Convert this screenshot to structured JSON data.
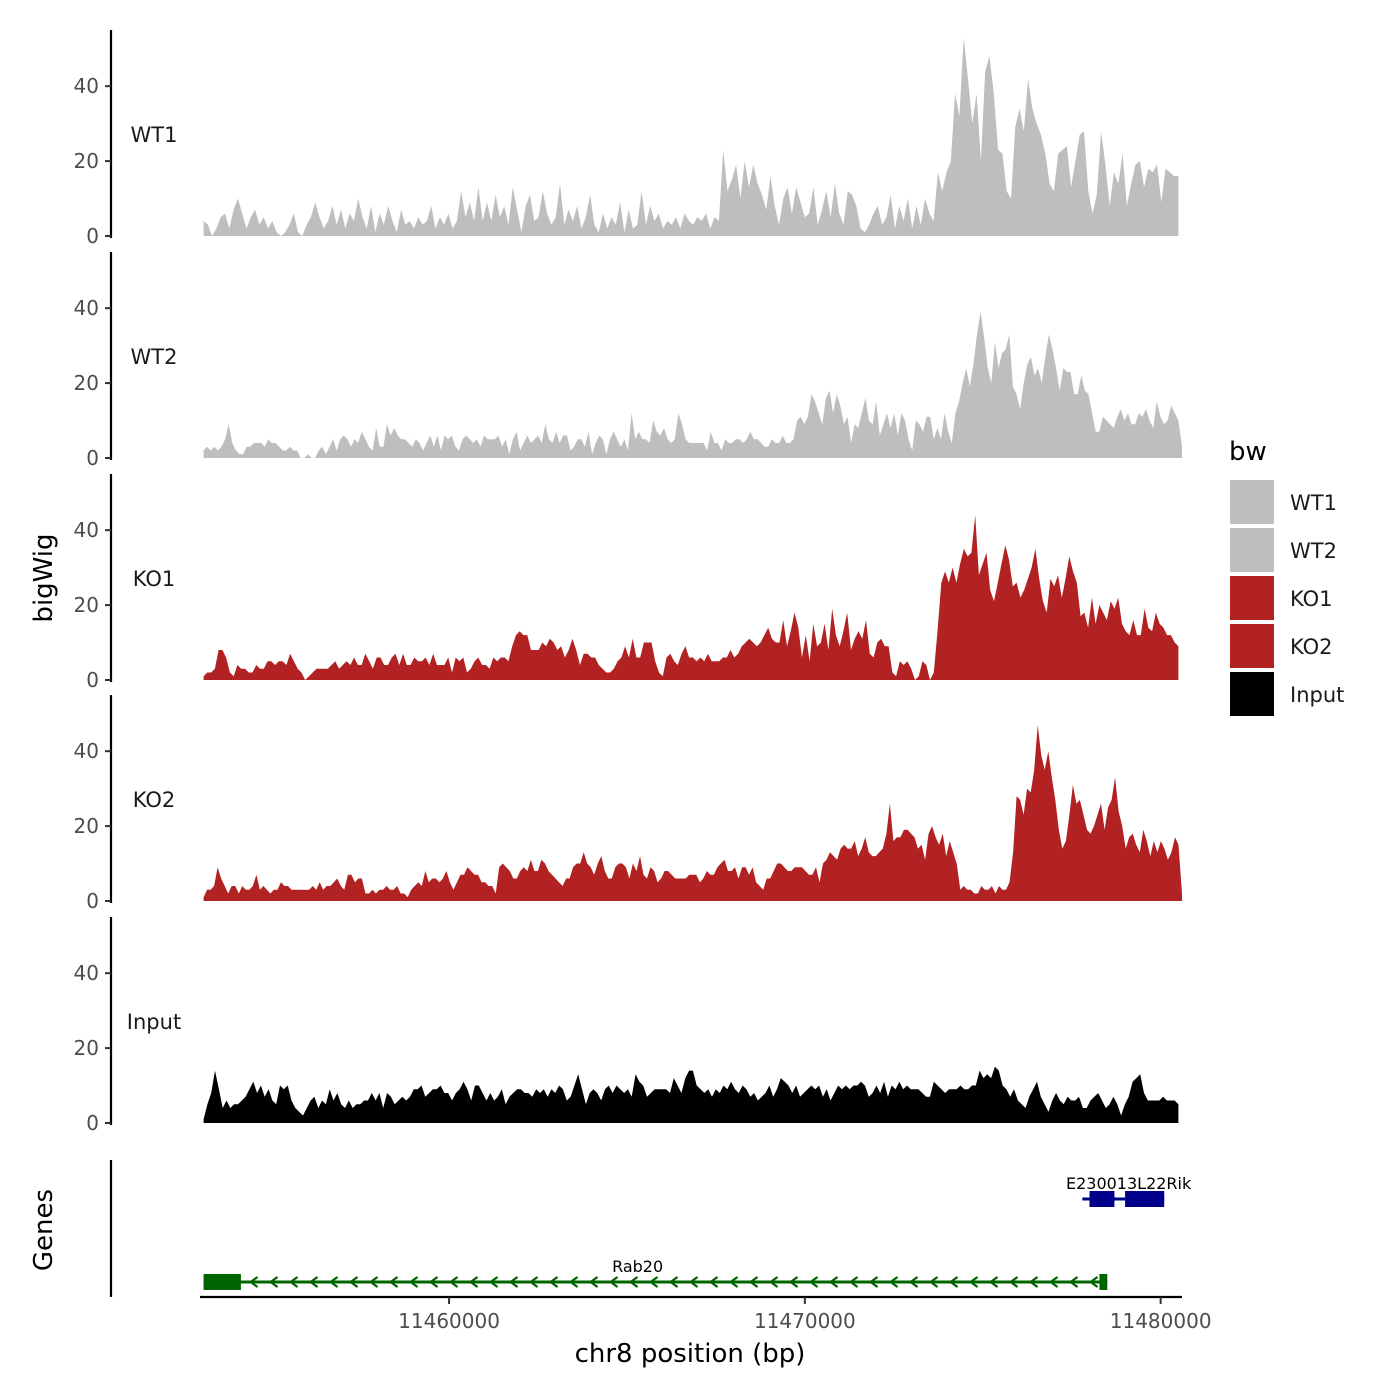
{
  "chart_data": {
    "type": "area",
    "ylabel": "bigWig",
    "xlabel": "chr8 position (bp)",
    "genes_label": "Genes",
    "xlim": [
      11453000,
      11480600
    ],
    "ylim": [
      0,
      55
    ],
    "yticks": [
      0,
      20,
      40
    ],
    "xticks": [
      11460000,
      11470000,
      11480000
    ],
    "xtick_labels": [
      "11460000",
      "11470000",
      "11480000"
    ],
    "legend": {
      "title": "bw",
      "position": "right",
      "entries": [
        {
          "label": "WT1",
          "color": "#bebebe"
        },
        {
          "label": "WT2",
          "color": "#bebebe"
        },
        {
          "label": "KO1",
          "color": "#b22222"
        },
        {
          "label": "KO2",
          "color": "#b22222"
        },
        {
          "label": "Input",
          "color": "#000000"
        }
      ]
    },
    "tracks": [
      {
        "name": "WT1",
        "color": "#bebebe",
        "x_start": 11453100,
        "x_end": 11480500,
        "values": [
          4,
          3,
          0,
          2,
          5,
          6,
          2,
          7,
          10,
          6,
          2,
          5,
          7,
          3,
          5,
          2,
          4,
          1,
          0,
          1,
          3,
          6,
          1,
          0,
          3,
          5,
          9,
          5,
          2,
          4,
          8,
          3,
          7,
          2,
          6,
          4,
          10,
          5,
          2,
          8,
          1,
          6,
          3,
          8,
          4,
          1,
          7,
          3,
          4,
          2,
          5,
          3,
          4,
          8,
          2,
          5,
          3,
          6,
          2,
          4,
          12,
          5,
          9,
          4,
          13,
          4,
          9,
          4,
          11,
          5,
          8,
          3,
          13,
          7,
          1,
          8,
          11,
          4,
          5,
          12,
          6,
          3,
          5,
          14,
          3,
          7,
          4,
          8,
          2,
          5,
          11,
          3,
          1,
          6,
          2,
          5,
          3,
          9,
          1,
          7,
          2,
          3,
          12,
          3,
          8,
          4,
          6,
          2,
          4,
          3,
          5,
          2,
          6,
          4,
          3,
          5,
          4,
          6,
          2,
          5,
          4,
          23,
          12,
          15,
          19,
          10,
          20,
          13,
          19,
          14,
          11,
          7,
          16,
          8,
          3,
          10,
          13,
          6,
          13,
          9,
          5,
          6,
          13,
          3,
          7,
          12,
          5,
          14,
          6,
          3,
          12,
          11,
          8,
          2,
          1,
          3,
          6,
          8,
          3,
          5,
          11,
          2,
          8,
          4,
          10,
          2,
          8,
          3,
          10,
          6,
          4,
          17,
          12,
          17,
          20,
          38,
          32,
          53,
          42,
          30,
          38,
          20,
          44,
          48,
          38,
          23,
          22,
          12,
          10,
          29,
          34,
          28,
          42,
          34,
          30,
          27,
          22,
          14,
          12,
          22,
          23,
          24,
          13,
          20,
          27,
          28,
          12,
          6,
          11,
          28,
          19,
          8,
          17,
          14,
          22,
          8,
          14,
          19,
          20,
          13,
          18,
          17,
          19,
          9,
          18,
          17,
          16,
          16
        ]
      },
      {
        "name": "WT2",
        "color": "#bebebe",
        "x_start": 11453100,
        "x_end": 11480600,
        "values": [
          2,
          3,
          2,
          3,
          2,
          3,
          5,
          9,
          4,
          2,
          1,
          1,
          3,
          3,
          4,
          4,
          4,
          3,
          5,
          4,
          4,
          3,
          2,
          2,
          3,
          2,
          2,
          0,
          0,
          1,
          0,
          0,
          2,
          3,
          1,
          3,
          5,
          2,
          5,
          6,
          5,
          3,
          5,
          4,
          7,
          5,
          3,
          2,
          8,
          3,
          3,
          9,
          6,
          8,
          6,
          5,
          5,
          4,
          3,
          5,
          4,
          2,
          4,
          6,
          3,
          6,
          2,
          6,
          5,
          6,
          3,
          2,
          5,
          6,
          5,
          4,
          5,
          3,
          6,
          5,
          5,
          5,
          6,
          3,
          5,
          1,
          5,
          7,
          2,
          4,
          6,
          4,
          5,
          6,
          4,
          9,
          5,
          4,
          7,
          4,
          6,
          6,
          2,
          3,
          5,
          5,
          3,
          7,
          1,
          4,
          6,
          5,
          1,
          5,
          7,
          5,
          3,
          5,
          2,
          12,
          5,
          7,
          5,
          5,
          4,
          10,
          7,
          6,
          8,
          5,
          4,
          5,
          12,
          9,
          5,
          4,
          4,
          4,
          4,
          4,
          2,
          7,
          4,
          4,
          2,
          5,
          4,
          4,
          5,
          5,
          4,
          5,
          7,
          5,
          5,
          4,
          3,
          3,
          5,
          4,
          4,
          6,
          4,
          4,
          5,
          10,
          11,
          9,
          11,
          17,
          15,
          12,
          9,
          16,
          18,
          12,
          17,
          14,
          9,
          11,
          4,
          9,
          8,
          12,
          16,
          10,
          9,
          15,
          6,
          9,
          12,
          8,
          12,
          6,
          12,
          10,
          5,
          2,
          10,
          9,
          7,
          11,
          11,
          5,
          8,
          5,
          12,
          7,
          4,
          12,
          15,
          20,
          24,
          19,
          25,
          33,
          39,
          32,
          24,
          20,
          31,
          24,
          28,
          29,
          33,
          19,
          17,
          13,
          20,
          25,
          27,
          22,
          24,
          20,
          27,
          33,
          29,
          24,
          18,
          24,
          23,
          23,
          17,
          17,
          22,
          18,
          17,
          12,
          7,
          7,
          11,
          10,
          9,
          8,
          11,
          13,
          10,
          12,
          9,
          9,
          12,
          11,
          13,
          10,
          8,
          15,
          11,
          9,
          10,
          14,
          12,
          10,
          3
        ]
      },
      {
        "name": "KO1",
        "color": "#b22222",
        "x_start": 11453100,
        "x_end": 11480500,
        "values": [
          1,
          2,
          2,
          3,
          8,
          8,
          6,
          2,
          1,
          4,
          3,
          3,
          2,
          2,
          4,
          3,
          3,
          5,
          5,
          4,
          5,
          5,
          4,
          7,
          5,
          3,
          2,
          0,
          1,
          2,
          3,
          3,
          3,
          3,
          4,
          5,
          3,
          4,
          5,
          4,
          6,
          4,
          4,
          7,
          5,
          3,
          6,
          6,
          4,
          4,
          6,
          7,
          4,
          7,
          4,
          4,
          6,
          5,
          5,
          6,
          4,
          7,
          4,
          4,
          4,
          6,
          2,
          6,
          5,
          6,
          2,
          3,
          5,
          6,
          4,
          4,
          3,
          6,
          5,
          6,
          6,
          5,
          9,
          12,
          13,
          12,
          12,
          8,
          8,
          8,
          10,
          9,
          11,
          10,
          8,
          9,
          6,
          8,
          11,
          8,
          4,
          7,
          7,
          6,
          6,
          4,
          3,
          2,
          2,
          3,
          5,
          6,
          9,
          6,
          11,
          6,
          6,
          10,
          10,
          10,
          5,
          2,
          1,
          6,
          7,
          5,
          4,
          7,
          9,
          6,
          6,
          5,
          6,
          5,
          7,
          5,
          5,
          5,
          6,
          6,
          8,
          6,
          7,
          9,
          10,
          11,
          10,
          9,
          10,
          12,
          14,
          11,
          10,
          10,
          16,
          9,
          13,
          18,
          14,
          6,
          12,
          5,
          15,
          9,
          10,
          15,
          8,
          19,
          12,
          9,
          13,
          18,
          8,
          11,
          13,
          11,
          16,
          7,
          6,
          10,
          11,
          9,
          9,
          2,
          1,
          5,
          4,
          5,
          3,
          0,
          1,
          5,
          4,
          0,
          2,
          13,
          26,
          29,
          26,
          30,
          26,
          31,
          35,
          33,
          34,
          44,
          28,
          31,
          34,
          24,
          21,
          26,
          31,
          36,
          32,
          25,
          26,
          22,
          24,
          27,
          30,
          35,
          27,
          21,
          18,
          27,
          25,
          28,
          22,
          27,
          33,
          29,
          26,
          17,
          18,
          14,
          22,
          15,
          20,
          18,
          16,
          21,
          19,
          22,
          15,
          13,
          12,
          16,
          12,
          12,
          19,
          14,
          13,
          18,
          15,
          14,
          12,
          12,
          10,
          9
        ]
      },
      {
        "name": "KO2",
        "color": "#b22222",
        "x_start": 11453100,
        "x_end": 11480600,
        "values": [
          1,
          3,
          3,
          4,
          9,
          6,
          4,
          2,
          4,
          4,
          2,
          4,
          3,
          3,
          4,
          7,
          3,
          4,
          3,
          2,
          3,
          3,
          5,
          4,
          4,
          3,
          3,
          3,
          3,
          3,
          3,
          4,
          3,
          5,
          3,
          4,
          4,
          5,
          6,
          4,
          3,
          7,
          7,
          5,
          6,
          6,
          2,
          2,
          3,
          2,
          3,
          3,
          4,
          3,
          3,
          4,
          2,
          2,
          1,
          3,
          4,
          5,
          4,
          8,
          5,
          6,
          6,
          5,
          6,
          8,
          5,
          3,
          5,
          7,
          7,
          9,
          8,
          7,
          7,
          5,
          5,
          4,
          4,
          2,
          9,
          10,
          9,
          8,
          6,
          6,
          8,
          9,
          8,
          11,
          8,
          8,
          11,
          10,
          8,
          7,
          6,
          5,
          4,
          6,
          6,
          9,
          10,
          10,
          13,
          10,
          9,
          7,
          10,
          12,
          8,
          6,
          6,
          9,
          10,
          10,
          9,
          6,
          10,
          8,
          12,
          7,
          6,
          9,
          8,
          5,
          6,
          8,
          8,
          7,
          6,
          6,
          6,
          6,
          7,
          7,
          7,
          5,
          6,
          8,
          7,
          7,
          9,
          10,
          11,
          8,
          8,
          9,
          6,
          9,
          9,
          7,
          9,
          5,
          4,
          3,
          6,
          6,
          8,
          10,
          10,
          9,
          8,
          8,
          9,
          9,
          9,
          8,
          7,
          7,
          9,
          5,
          10,
          11,
          13,
          12,
          11,
          14,
          15,
          14,
          14,
          16,
          12,
          14,
          17,
          13,
          12,
          12,
          13,
          14,
          18,
          26,
          16,
          17,
          17,
          19,
          19,
          18,
          17,
          14,
          15,
          11,
          18,
          20,
          17,
          15,
          18,
          12,
          16,
          13,
          10,
          3,
          4,
          3,
          3,
          2,
          2,
          4,
          3,
          3,
          4,
          2,
          4,
          3,
          3,
          5,
          13,
          28,
          27,
          23,
          30,
          29,
          35,
          47,
          39,
          35,
          40,
          33,
          27,
          19,
          14,
          16,
          23,
          31,
          26,
          27,
          23,
          19,
          18,
          20,
          23,
          26,
          19,
          25,
          27,
          33,
          24,
          20,
          14,
          17,
          18,
          15,
          13,
          19,
          16,
          12,
          16,
          13,
          16,
          14,
          11,
          13,
          17,
          15,
          2
        ]
      },
      {
        "name": "Input",
        "color": "#000000",
        "x_start": 11453100,
        "x_end": 11480500,
        "values": [
          1,
          5,
          8,
          14,
          9,
          4,
          6,
          4,
          5,
          5,
          6,
          7,
          9,
          11,
          8,
          10,
          7,
          9,
          6,
          5,
          10,
          9,
          10,
          6,
          4,
          3,
          2,
          4,
          6,
          7,
          4,
          6,
          5,
          9,
          6,
          8,
          5,
          4,
          6,
          4,
          5,
          5,
          6,
          6,
          8,
          6,
          8,
          4,
          8,
          7,
          5,
          6,
          7,
          6,
          7,
          9,
          9,
          10,
          7,
          8,
          9,
          9,
          10,
          8,
          8,
          6,
          8,
          9,
          11,
          9,
          6,
          10,
          10,
          8,
          6,
          8,
          6,
          7,
          9,
          5,
          7,
          8,
          9,
          9,
          8,
          8,
          7,
          9,
          8,
          9,
          7,
          9,
          8,
          10,
          9,
          6,
          7,
          10,
          13,
          9,
          5,
          8,
          9,
          8,
          6,
          9,
          10,
          8,
          10,
          9,
          8,
          9,
          7,
          13,
          11,
          10,
          7,
          8,
          9,
          9,
          9,
          9,
          8,
          12,
          10,
          8,
          12,
          14,
          14,
          10,
          9,
          8,
          9,
          7,
          9,
          8,
          10,
          9,
          11,
          9,
          8,
          10,
          9,
          7,
          8,
          6,
          7,
          8,
          10,
          7,
          9,
          12,
          11,
          10,
          8,
          10,
          7,
          8,
          9,
          10,
          9,
          10,
          7,
          9,
          6,
          8,
          10,
          9,
          10,
          9,
          10,
          10,
          11,
          10,
          7,
          8,
          10,
          8,
          11,
          7,
          10,
          9,
          11,
          9,
          10,
          9,
          9,
          9,
          8,
          7,
          7,
          11,
          10,
          9,
          8,
          9,
          9,
          9,
          10,
          9,
          9,
          10,
          10,
          14,
          12,
          13,
          12,
          15,
          14,
          10,
          9,
          7,
          9,
          6,
          5,
          4,
          7,
          9,
          11,
          7,
          5,
          3,
          6,
          8,
          6,
          5,
          7,
          6,
          6,
          7,
          4,
          4,
          6,
          7,
          8,
          6,
          4,
          5,
          7,
          5,
          2,
          5,
          7,
          11,
          12,
          13,
          8,
          6,
          6,
          6,
          6,
          7,
          6,
          6,
          6,
          5
        ]
      }
    ],
    "genes": [
      {
        "name": "Rab20",
        "strand": "-",
        "start": 11453100,
        "end": 11478500,
        "color": "#006400",
        "exons": [
          [
            11453100,
            11454150
          ],
          [
            11478280,
            11478500
          ]
        ]
      },
      {
        "name": "E230013L22Rik",
        "strand": "+",
        "start": 11477800,
        "end": 11480100,
        "color": "#00008b",
        "exons": [
          [
            11478000,
            11478700
          ],
          [
            11479000,
            11480100
          ]
        ]
      }
    ]
  }
}
